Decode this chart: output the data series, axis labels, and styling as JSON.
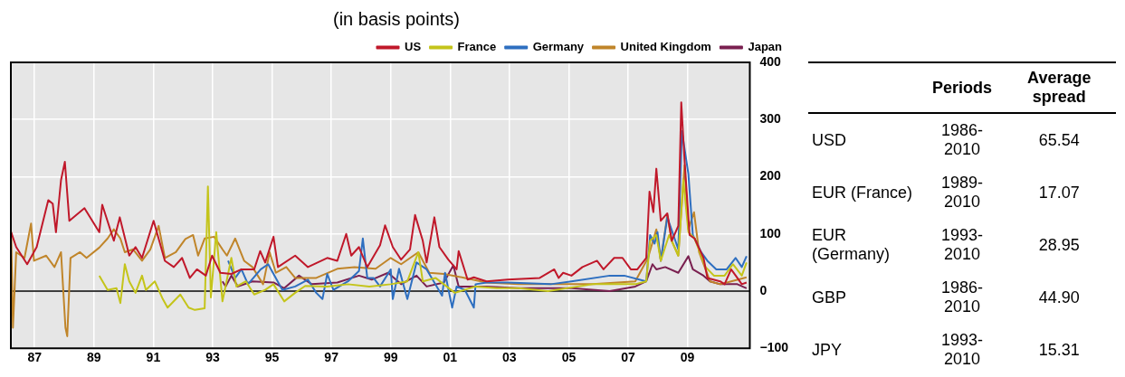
{
  "chart_data": {
    "type": "line",
    "subtitle": "(in basis points)",
    "annotations": [
      "Periods",
      "Average spread",
      "USD",
      "1986-2010",
      "65.54",
      "EUR (France)",
      "1989-2010",
      "17.07",
      "EUR (Germany)",
      "1993-2010",
      "28.95",
      "GBP",
      "1986-2010",
      "44.90",
      "JPY",
      "1993-2010",
      "15.31"
    ],
    "xlim": [
      1986.2,
      2011.1
    ],
    "xticks": [
      {
        "value": 1987,
        "label": "87"
      },
      {
        "value": 1989,
        "label": "89"
      },
      {
        "value": 1991,
        "label": "91"
      },
      {
        "value": 1993,
        "label": "93"
      },
      {
        "value": 1995,
        "label": "95"
      },
      {
        "value": 1997,
        "label": "97"
      },
      {
        "value": 1999,
        "label": "99"
      },
      {
        "value": 2001,
        "label": "01"
      },
      {
        "value": 2003,
        "label": "03"
      },
      {
        "value": 2005,
        "label": "05"
      },
      {
        "value": 2007,
        "label": "07"
      },
      {
        "value": 2009,
        "label": "09"
      }
    ],
    "ylim": [
      -100,
      400
    ],
    "yticks": [
      {
        "value": -100,
        "label": "−100"
      },
      0,
      100,
      200,
      300,
      400
    ],
    "grid": true,
    "legend": "top right",
    "ref_lines": [
      {
        "axis": "y",
        "value": 0,
        "color": "#000000"
      }
    ],
    "series": [
      {
        "name": "US",
        "color": "#c0182a",
        "x": [
          1986.21,
          1986.38,
          1986.75,
          1987.07,
          1987.46,
          1987.61,
          1987.72,
          1987.89,
          1988.02,
          1988.17,
          1988.68,
          1989.18,
          1989.28,
          1989.67,
          1989.87,
          1990.19,
          1990.4,
          1990.62,
          1991.01,
          1991.39,
          1991.69,
          1991.97,
          1992.23,
          1992.47,
          1992.77,
          1992.98,
          1993.26,
          1993.63,
          1993.97,
          1994.4,
          1994.6,
          1994.77,
          1995.05,
          1995.2,
          1995.78,
          1996.21,
          1996.86,
          1997.2,
          1997.5,
          1997.67,
          1997.93,
          1998.21,
          1998.64,
          1998.81,
          1999.07,
          1999.35,
          1999.65,
          1999.82,
          2000.08,
          2000.21,
          2000.47,
          2000.64,
          2000.94,
          2001.22,
          2001.29,
          2001.59,
          2001.8,
          2002.23,
          2002.94,
          2004.02,
          2004.51,
          2004.66,
          2004.81,
          2005.09,
          2005.46,
          2005.95,
          2006.17,
          2006.53,
          2006.81,
          2007.09,
          2007.31,
          2007.61,
          2007.72,
          2007.85,
          2007.95,
          2008.1,
          2008.32,
          2008.47,
          2008.69,
          2008.79,
          2008.9,
          2009.07,
          2009.24,
          2009.54,
          2009.67,
          2010.1,
          2010.25,
          2010.47,
          2010.68,
          2010.83,
          2010.99
        ],
        "values": [
          103,
          77,
          47,
          77,
          159,
          153,
          103,
          194,
          226,
          123,
          145,
          103,
          151,
          88,
          129,
          62,
          77,
          58,
          123,
          53,
          42,
          58,
          23,
          38,
          27,
          62,
          32,
          30,
          38,
          38,
          70,
          50,
          95,
          42,
          62,
          42,
          58,
          53,
          100,
          62,
          77,
          42,
          80,
          115,
          77,
          55,
          73,
          133,
          88,
          50,
          129,
          77,
          55,
          38,
          70,
          20,
          24,
          17,
          20,
          23,
          38,
          23,
          32,
          27,
          42,
          53,
          38,
          58,
          58,
          38,
          38,
          58,
          174,
          138,
          214,
          123,
          136,
          88,
          114,
          330,
          229,
          98,
          92,
          58,
          23,
          17,
          12,
          38,
          23,
          12,
          15
        ]
      },
      {
        "name": "France",
        "color": "#c4c41a",
        "x": [
          1989.18,
          1989.46,
          1989.76,
          1989.89,
          1990.04,
          1990.19,
          1990.4,
          1990.62,
          1990.75,
          1991.05,
          1991.32,
          1991.48,
          1991.91,
          1992.19,
          1992.4,
          1992.73,
          1992.84,
          1992.94,
          1993.12,
          1993.33,
          1993.63,
          1993.8,
          1994.12,
          1994.4,
          1994.77,
          1995.05,
          1995.41,
          1995.78,
          1996.12,
          1996.86,
          1997.56,
          1998.28,
          1999.0,
          1999.56,
          1999.93,
          2000.08,
          2000.51,
          2001.16,
          2001.86,
          2002.58,
          2003.31,
          2004.3,
          2005.8,
          2007.24,
          2007.61,
          2007.74,
          2007.95,
          2008.1,
          2008.38,
          2008.69,
          2008.86,
          2009.03,
          2009.24,
          2009.61,
          2009.89,
          2010.25,
          2010.53,
          2010.83,
          2010.99
        ],
        "values": [
          27,
          2,
          5,
          -21,
          47,
          17,
          -3,
          27,
          2,
          17,
          -14,
          -29,
          -6,
          -29,
          -33,
          -30,
          183,
          -11,
          103,
          -18,
          58,
          8,
          17,
          -6,
          2,
          12,
          -18,
          -3,
          9,
          8,
          12,
          8,
          12,
          17,
          68,
          17,
          23,
          -3,
          8,
          5,
          5,
          0,
          12,
          12,
          17,
          88,
          98,
          53,
          98,
          62,
          194,
          103,
          92,
          42,
          27,
          27,
          47,
          27,
          50
        ]
      },
      {
        "name": "Germany",
        "color": "#2e6fc0",
        "x": [
          1993.52,
          1993.76,
          1993.97,
          1994.19,
          1994.62,
          1994.87,
          1995.35,
          1995.78,
          1996.21,
          1996.49,
          1996.7,
          1996.86,
          1997.07,
          1997.56,
          1997.93,
          1998.06,
          1998.21,
          1998.42,
          1998.64,
          1999.0,
          1999.07,
          1999.28,
          1999.56,
          1999.87,
          2000.21,
          2000.73,
          2000.83,
          2001.07,
          2001.22,
          2001.5,
          2001.8,
          2001.86,
          2002.23,
          2002.94,
          2004.39,
          2005.09,
          2006.38,
          2006.87,
          2007.61,
          2007.74,
          2007.89,
          2007.99,
          2008.1,
          2008.32,
          2008.69,
          2008.81,
          2009.03,
          2009.18,
          2009.46,
          2009.67,
          2009.97,
          2010.32,
          2010.62,
          2010.83,
          2010.99
        ],
        "values": [
          53,
          23,
          38,
          12,
          38,
          47,
          2,
          8,
          20,
          -3,
          -14,
          30,
          2,
          17,
          35,
          92,
          23,
          23,
          8,
          38,
          -14,
          39,
          -14,
          50,
          38,
          -8,
          32,
          -29,
          8,
          2,
          -29,
          12,
          15,
          15,
          12,
          17,
          27,
          27,
          17,
          98,
          83,
          103,
          53,
          129,
          73,
          280,
          205,
          98,
          68,
          53,
          38,
          38,
          58,
          42,
          61
        ]
      },
      {
        "name": "United Kingdom",
        "color": "#c0852a",
        "x": [
          1986.21,
          1986.27,
          1986.38,
          1986.66,
          1986.88,
          1986.98,
          1987.39,
          1987.67,
          1987.89,
          1988.04,
          1988.1,
          1988.21,
          1988.53,
          1988.75,
          1989.18,
          1989.46,
          1989.67,
          1989.89,
          1990.04,
          1990.32,
          1990.62,
          1990.9,
          1991.18,
          1991.39,
          1991.76,
          1992.08,
          1992.34,
          1992.51,
          1992.73,
          1993.05,
          1993.33,
          1993.48,
          1993.76,
          1994.06,
          1994.34,
          1994.7,
          1994.92,
          1995.13,
          1995.48,
          1995.78,
          1996.49,
          1997.2,
          1997.78,
          1998.49,
          1999.0,
          1999.35,
          1999.93,
          2000.3,
          2000.79,
          2001.5,
          2002.23,
          2003.31,
          2004.39,
          2005.8,
          2007.24,
          2007.67,
          2007.95,
          2008.1,
          2008.32,
          2008.47,
          2008.69,
          2008.9,
          2009.03,
          2009.22,
          2009.39,
          2009.76,
          2010.1,
          2010.47,
          2010.99
        ],
        "values": [
          103,
          -64,
          68,
          58,
          118,
          53,
          62,
          42,
          68,
          -64,
          -79,
          58,
          68,
          58,
          76,
          92,
          108,
          92,
          68,
          73,
          53,
          73,
          114,
          58,
          68,
          91,
          98,
          62,
          92,
          95,
          73,
          62,
          92,
          53,
          42,
          12,
          68,
          32,
          42,
          23,
          23,
          39,
          42,
          39,
          58,
          47,
          68,
          32,
          30,
          23,
          15,
          12,
          12,
          12,
          17,
          58,
          108,
          53,
          133,
          88,
          62,
          220,
          108,
          138,
          68,
          17,
          12,
          17,
          24
        ]
      },
      {
        "name": "Japan",
        "color": "#7a2050",
        "x": [
          1993.33,
          1993.44,
          1993.63,
          1993.85,
          1994.34,
          1995.05,
          1995.41,
          1995.91,
          1996.34,
          1997.2,
          1997.93,
          1998.36,
          1998.91,
          1999.35,
          1999.87,
          2000.21,
          2000.79,
          2001.11,
          2001.29,
          2002.23,
          2003.31,
          2005.09,
          2006.38,
          2007.24,
          2007.61,
          2007.82,
          2007.95,
          2008.25,
          2008.69,
          2009.03,
          2009.18,
          2009.54,
          2009.76,
          2010.1,
          2010.68,
          2010.99
        ],
        "values": [
          17,
          8,
          27,
          8,
          17,
          15,
          5,
          27,
          12,
          15,
          27,
          20,
          32,
          12,
          27,
          8,
          15,
          45,
          8,
          8,
          5,
          5,
          0,
          8,
          17,
          47,
          38,
          42,
          32,
          61,
          38,
          27,
          17,
          12,
          12,
          5
        ]
      }
    ]
  }
}
